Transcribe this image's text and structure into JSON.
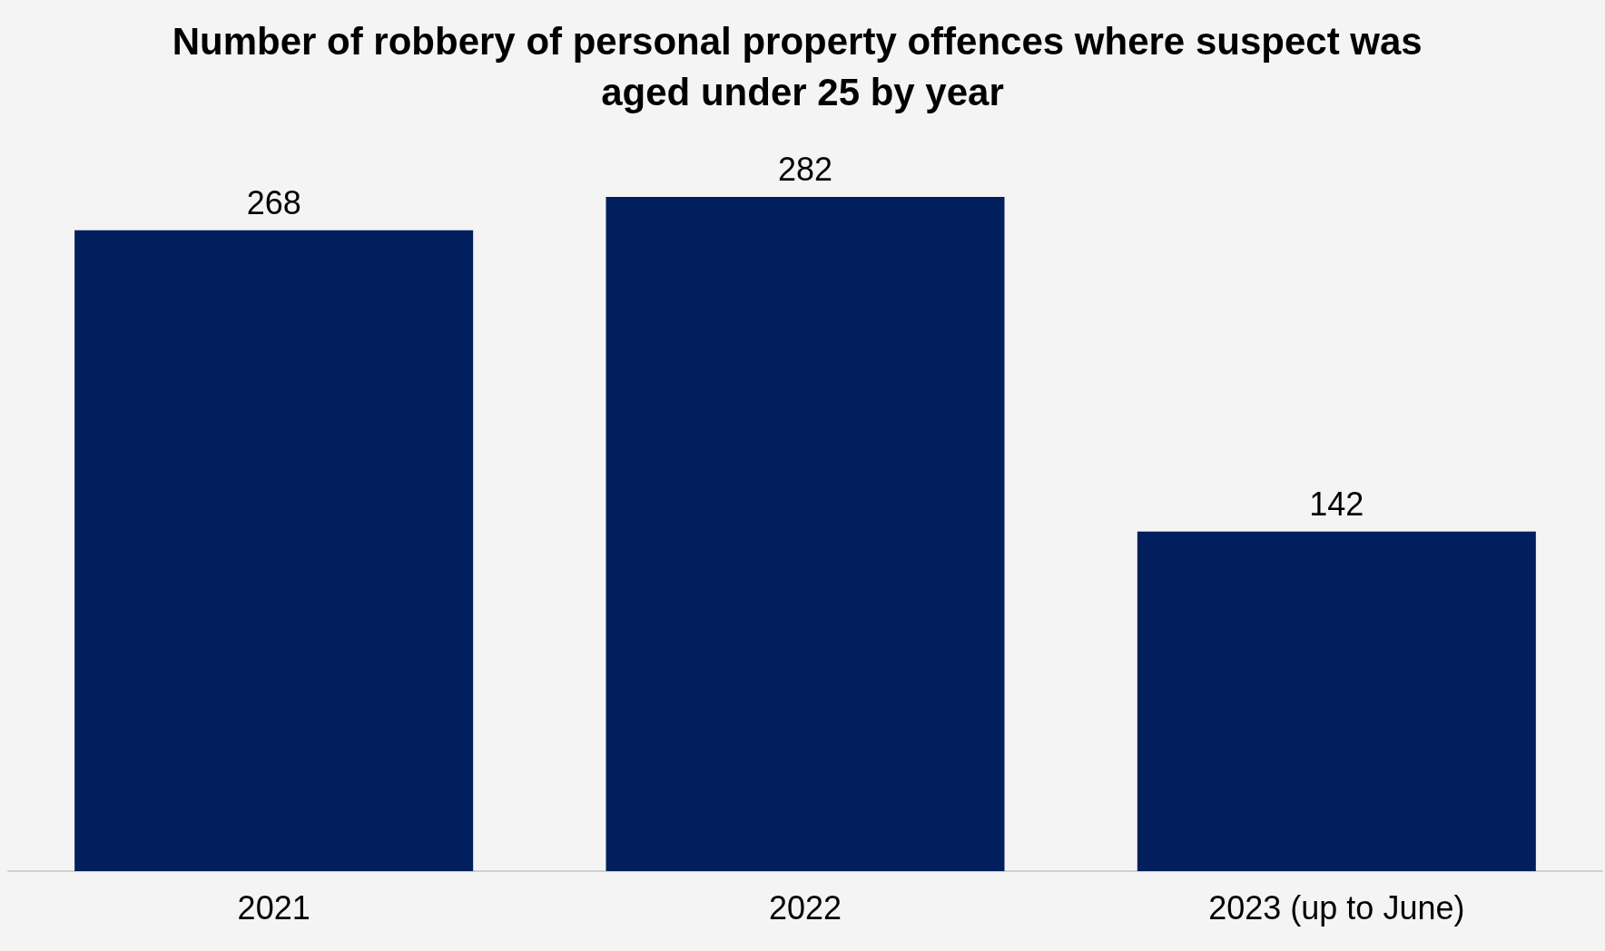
{
  "chart_data": {
    "type": "bar",
    "title": "Number of robbery of personal property offences where suspect was aged under 25 by year",
    "categories": [
      "2021",
      "2022",
      "2023 (up to June)"
    ],
    "values": [
      268,
      282,
      142
    ],
    "color": "#001f5c",
    "data_labels": true
  }
}
